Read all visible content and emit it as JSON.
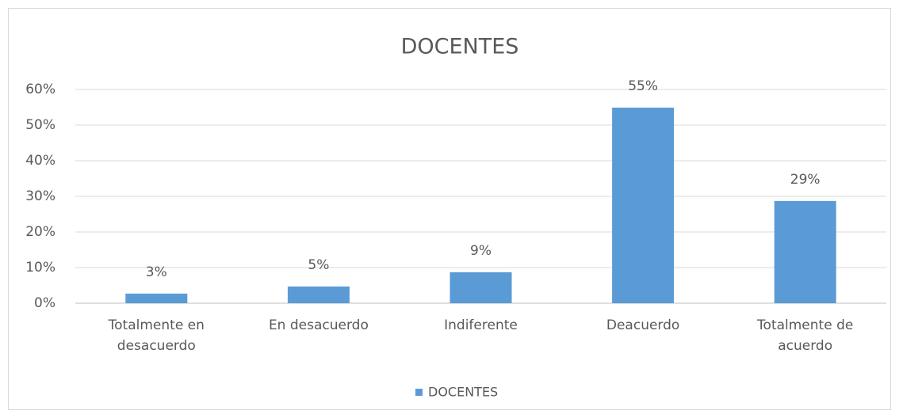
{
  "chart_data": {
    "type": "bar",
    "title": "DOCENTES",
    "categories": [
      "Totalmente en desacuerdo",
      "En desacuerdo",
      "Indiferente",
      "Deacuerdo",
      "Totalmente de acuerdo"
    ],
    "series": [
      {
        "name": "DOCENTES",
        "color": "#5b9bd5",
        "values": [
          2.7,
          4.7,
          8.7,
          54.9,
          28.7
        ],
        "value_labels": [
          "3%",
          "5%",
          "9%",
          "55%",
          "29%"
        ]
      }
    ],
    "ylim": [
      0,
      60
    ],
    "yticks": [
      {
        "value": 0,
        "label": "0%"
      },
      {
        "value": 10,
        "label": "10%"
      },
      {
        "value": 20,
        "label": "20%"
      },
      {
        "value": 30,
        "label": "30%"
      },
      {
        "value": 40,
        "label": "40%"
      },
      {
        "value": 50,
        "label": "50%"
      },
      {
        "value": 60,
        "label": "60%"
      }
    ],
    "grid": true,
    "legend": "bottom"
  }
}
